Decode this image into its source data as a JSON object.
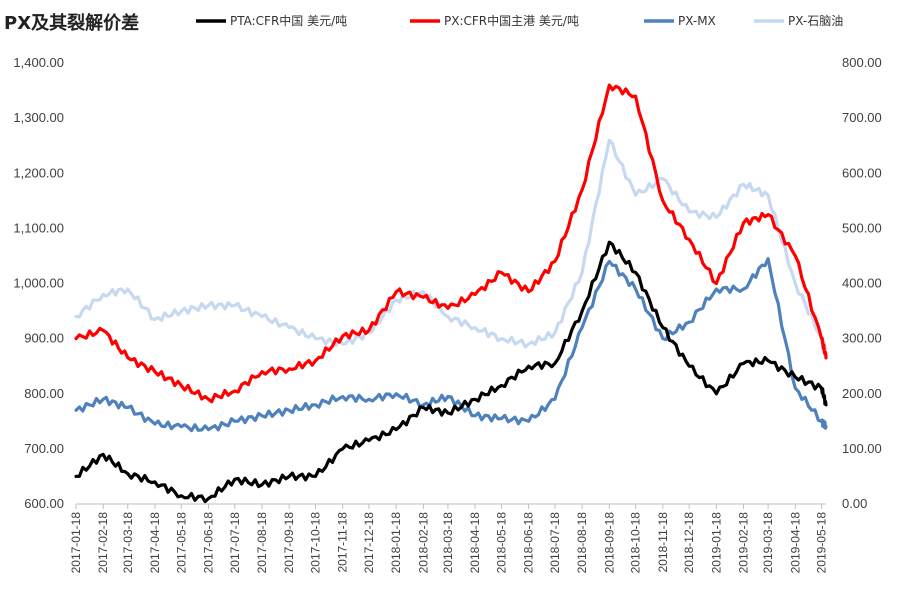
{
  "chart_data": {
    "type": "line",
    "title": "PX及其裂解价差",
    "grid": false,
    "legend_position": "top",
    "axes": {
      "left": {
        "ylim": [
          600,
          1400
        ],
        "ticks": [
          "600.00",
          "700.00",
          "800.00",
          "900.00",
          "1,000.00",
          "1,100.00",
          "1,200.00",
          "1,300.00",
          "1,400.00"
        ]
      },
      "right": {
        "ylim": [
          0,
          800
        ],
        "ticks": [
          "0.00",
          "100.00",
          "200.00",
          "300.00",
          "400.00",
          "500.00",
          "600.00",
          "700.00",
          "800.00"
        ]
      }
    },
    "x_ticks": [
      "2017-01-18",
      "2017-02-18",
      "2017-03-18",
      "2017-04-18",
      "2017-05-18",
      "2017-06-18",
      "2017-07-18",
      "2017-08-18",
      "2017-09-18",
      "2017-10-18",
      "2017-11-18",
      "2017-12-18",
      "2018-01-18",
      "2018-02-18",
      "2018-03-18",
      "2018-04-18",
      "2018-05-18",
      "2018-06-18",
      "2018-07-18",
      "2018-08-18",
      "2018-09-18",
      "2018-10-18",
      "2018-11-18",
      "2018-12-18",
      "2019-01-18",
      "2019-02-18",
      "2019-03-18",
      "2019-04-18",
      "2019-05-18"
    ],
    "series": [
      {
        "name": "PTA:CFR中国 美元/吨",
        "axis": "left",
        "color": "#000000",
        "x": [
          "2017-01-18",
          "2017-02-18",
          "2017-03-18",
          "2017-04-18",
          "2017-05-18",
          "2017-06-18",
          "2017-07-18",
          "2017-08-18",
          "2017-09-18",
          "2017-10-18",
          "2017-11-18",
          "2017-12-18",
          "2018-01-18",
          "2018-02-18",
          "2018-03-18",
          "2018-04-18",
          "2018-05-18",
          "2018-06-18",
          "2018-07-18",
          "2018-08-18",
          "2018-09-18",
          "2018-10-18",
          "2018-11-18",
          "2018-12-18",
          "2019-01-18",
          "2019-02-18",
          "2019-03-18",
          "2019-04-18",
          "2019-05-18",
          "2019-05-23"
        ],
        "values": [
          650,
          690,
          655,
          640,
          615,
          610,
          645,
          635,
          650,
          650,
          700,
          715,
          735,
          775,
          765,
          790,
          815,
          850,
          855,
          950,
          1075,
          1020,
          920,
          850,
          800,
          855,
          860,
          830,
          810,
          780
        ]
      },
      {
        "name": "PX:CFR中国主港 美元/吨",
        "axis": "left",
        "color": "#ff0000",
        "x": [
          "2017-01-18",
          "2017-02-18",
          "2017-03-18",
          "2017-04-18",
          "2017-05-18",
          "2017-06-18",
          "2017-07-18",
          "2017-08-18",
          "2017-09-18",
          "2017-10-18",
          "2017-11-18",
          "2017-12-18",
          "2018-01-18",
          "2018-02-18",
          "2018-03-18",
          "2018-04-18",
          "2018-05-18",
          "2018-06-18",
          "2018-07-18",
          "2018-08-18",
          "2018-09-18",
          "2018-10-18",
          "2018-11-18",
          "2018-12-18",
          "2019-01-18",
          "2019-02-18",
          "2019-03-18",
          "2019-04-18",
          "2019-05-18",
          "2019-05-23"
        ],
        "values": [
          900,
          915,
          865,
          840,
          815,
          790,
          805,
          840,
          845,
          860,
          905,
          915,
          985,
          975,
          955,
          980,
          1020,
          985,
          1040,
          1170,
          1360,
          1340,
          1150,
          1080,
          1000,
          1110,
          1125,
          1050,
          900,
          865
        ]
      },
      {
        "name": "PX-MX",
        "axis": "right",
        "color": "#4f81bd",
        "x": [
          "2017-01-18",
          "2017-02-18",
          "2017-03-18",
          "2017-04-18",
          "2017-05-18",
          "2017-06-18",
          "2017-07-18",
          "2017-08-18",
          "2017-09-18",
          "2017-10-18",
          "2017-11-18",
          "2017-12-18",
          "2018-01-18",
          "2018-02-18",
          "2018-03-18",
          "2018-04-18",
          "2018-05-18",
          "2018-06-18",
          "2018-07-18",
          "2018-08-18",
          "2018-09-18",
          "2018-10-18",
          "2018-11-18",
          "2018-12-18",
          "2019-01-18",
          "2019-02-18",
          "2019-03-18",
          "2019-04-18",
          "2019-05-18",
          "2019-05-23"
        ],
        "values": [
          170,
          190,
          175,
          145,
          140,
          135,
          150,
          160,
          170,
          180,
          195,
          190,
          200,
          180,
          195,
          160,
          155,
          150,
          190,
          320,
          440,
          390,
          300,
          330,
          390,
          390,
          445,
          210,
          150,
          140
        ]
      },
      {
        "name": "PX-石脑油",
        "axis": "right",
        "color": "#c6d9f1",
        "x": [
          "2017-01-18",
          "2017-02-18",
          "2017-03-18",
          "2017-04-18",
          "2017-05-18",
          "2017-06-18",
          "2017-07-18",
          "2017-08-18",
          "2017-09-18",
          "2017-10-18",
          "2017-11-18",
          "2017-12-18",
          "2018-01-18",
          "2018-02-18",
          "2018-03-18",
          "2018-04-18",
          "2018-05-18",
          "2018-06-18",
          "2018-07-18",
          "2018-08-18",
          "2018-09-18",
          "2018-10-18",
          "2018-11-18",
          "2018-12-18",
          "2019-01-18",
          "2019-02-18",
          "2019-03-18",
          "2019-04-18",
          "2019-05-18",
          "2019-05-23"
        ],
        "values": [
          340,
          380,
          390,
          335,
          350,
          360,
          360,
          340,
          320,
          300,
          290,
          310,
          370,
          385,
          340,
          320,
          300,
          290,
          310,
          420,
          660,
          560,
          590,
          530,
          520,
          580,
          560,
          400,
          300,
          280
        ]
      }
    ]
  }
}
